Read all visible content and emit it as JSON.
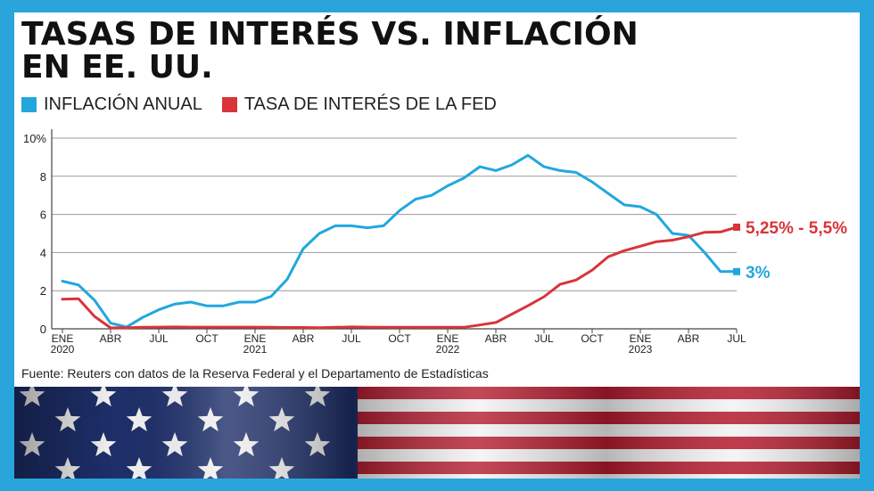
{
  "title_line1": "TASAS DE INTERÉS VS. INFLACIÓN",
  "title_line2": "EN EE. UU.",
  "source": "Fuente: Reuters con datos de la Reserva Federal y el Departamento de Estadísticas",
  "colors": {
    "inflation": "#22a7dd",
    "fed": "#d8343a",
    "background": "#2aa5dc"
  },
  "chart_data": {
    "type": "line",
    "legend_position": "top-left",
    "grid": true,
    "ylim": [
      0,
      10
    ],
    "yticks": [
      0,
      2,
      4,
      6,
      8,
      10
    ],
    "ytick_labels": [
      "0",
      "2",
      "4",
      "6",
      "8",
      "10%"
    ],
    "x_range": [
      "2020-01",
      "2023-07"
    ],
    "xticks": [
      {
        "month": "2020-01",
        "line1": "ENE",
        "line2": "2020"
      },
      {
        "month": "2020-04",
        "line1": "ABR",
        "line2": ""
      },
      {
        "month": "2020-07",
        "line1": "JUL",
        "line2": ""
      },
      {
        "month": "2020-10",
        "line1": "OCT",
        "line2": ""
      },
      {
        "month": "2021-01",
        "line1": "ENE",
        "line2": "2021"
      },
      {
        "month": "2021-04",
        "line1": "ABR",
        "line2": ""
      },
      {
        "month": "2021-07",
        "line1": "JUL",
        "line2": ""
      },
      {
        "month": "2021-10",
        "line1": "OCT",
        "line2": ""
      },
      {
        "month": "2022-01",
        "line1": "ENE",
        "line2": "2022"
      },
      {
        "month": "2022-04",
        "line1": "ABR",
        "line2": ""
      },
      {
        "month": "2022-07",
        "line1": "JUL",
        "line2": ""
      },
      {
        "month": "2022-10",
        "line1": "OCT",
        "line2": ""
      },
      {
        "month": "2023-01",
        "line1": "ENE",
        "line2": "2023"
      },
      {
        "month": "2023-04",
        "line1": "ABR",
        "line2": ""
      },
      {
        "month": "2023-07",
        "line1": "JUL",
        "line2": ""
      }
    ],
    "x": [
      "2020-01",
      "2020-02",
      "2020-03",
      "2020-04",
      "2020-05",
      "2020-06",
      "2020-07",
      "2020-08",
      "2020-09",
      "2020-10",
      "2020-11",
      "2020-12",
      "2021-01",
      "2021-02",
      "2021-03",
      "2021-04",
      "2021-05",
      "2021-06",
      "2021-07",
      "2021-08",
      "2021-09",
      "2021-10",
      "2021-11",
      "2021-12",
      "2022-01",
      "2022-02",
      "2022-03",
      "2022-04",
      "2022-05",
      "2022-06",
      "2022-07",
      "2022-08",
      "2022-09",
      "2022-10",
      "2022-11",
      "2022-12",
      "2023-01",
      "2023-02",
      "2023-03",
      "2023-04",
      "2023-05",
      "2023-06",
      "2023-07"
    ],
    "series": [
      {
        "name": "INFLACIÓN ANUAL",
        "color": "#22a7dd",
        "end_label": "3%",
        "values": [
          2.5,
          2.3,
          1.5,
          0.3,
          0.1,
          0.6,
          1.0,
          1.3,
          1.4,
          1.2,
          1.2,
          1.4,
          1.4,
          1.7,
          2.6,
          4.2,
          5.0,
          5.4,
          5.4,
          5.3,
          5.4,
          6.2,
          6.8,
          7.0,
          7.5,
          7.9,
          8.5,
          8.3,
          8.6,
          9.1,
          8.5,
          8.3,
          8.2,
          7.7,
          7.1,
          6.5,
          6.4,
          6.0,
          5.0,
          4.9,
          4.0,
          3.0,
          3.0
        ]
      },
      {
        "name": "TASA DE INTERÉS DE LA FED",
        "color": "#d8343a",
        "end_label": "5,25% - 5,5%",
        "values": [
          1.55,
          1.58,
          0.65,
          0.05,
          0.05,
          0.08,
          0.09,
          0.1,
          0.09,
          0.09,
          0.09,
          0.09,
          0.09,
          0.08,
          0.07,
          0.07,
          0.06,
          0.08,
          0.1,
          0.09,
          0.08,
          0.08,
          0.08,
          0.08,
          0.08,
          0.08,
          0.2,
          0.33,
          0.77,
          1.21,
          1.68,
          2.33,
          2.56,
          3.08,
          3.78,
          4.1,
          4.33,
          4.57,
          4.65,
          4.83,
          5.06,
          5.08,
          5.33
        ]
      }
    ]
  }
}
